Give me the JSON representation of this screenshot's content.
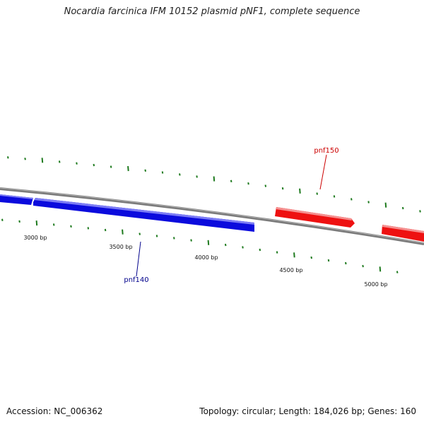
{
  "title": "Nocardia farcinica IFM 10152 plasmid pNF1, complete sequence",
  "footer": {
    "accession": "Accession: NC_006362",
    "summary": "Topology: circular; Length: 184,026 bp; Genes: 160"
  },
  "ruler": {
    "labels": [
      "3000 bp",
      "3500 bp",
      "4000 bp",
      "4500 bp",
      "5000 bp"
    ],
    "tick_color": "#1e7a1e"
  },
  "genes": [
    {
      "name": "pnf140",
      "color": "#0b0bdd",
      "label_color": "#00008b",
      "strand": "reverse"
    },
    {
      "name": "pnf150",
      "color": "#ee1111",
      "label_color": "#cc0000",
      "strand": "forward"
    }
  ],
  "colors": {
    "backbone": "#7a7a7a",
    "reverse_strand": "#0b0bdd",
    "forward_strand": "#ee1111"
  }
}
